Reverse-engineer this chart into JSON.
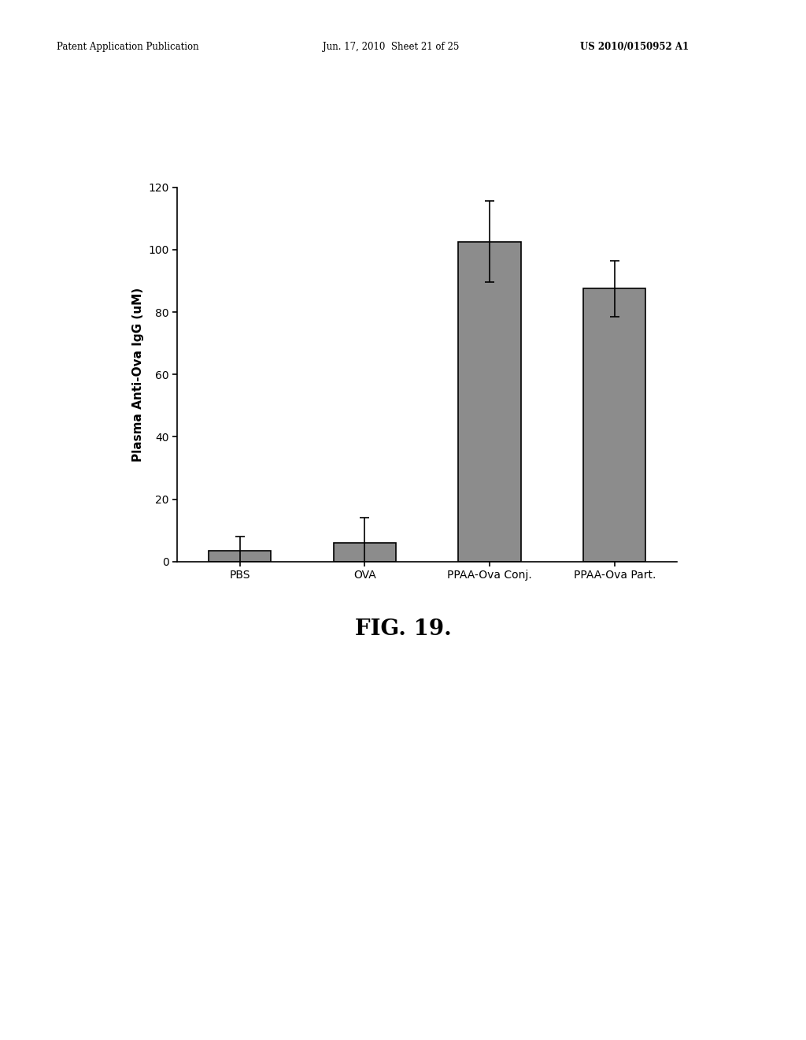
{
  "categories": [
    "PBS",
    "OVA",
    "PPAA-Ova Conj.",
    "PPAA-Ova Part."
  ],
  "values": [
    3.5,
    6.0,
    102.5,
    87.5
  ],
  "errors": [
    4.5,
    8.0,
    13.0,
    9.0
  ],
  "bar_color": "#8c8c8c",
  "bar_edgecolor": "#000000",
  "ylabel": "Plasma Anti-Ova IgG (uM)",
  "ylim": [
    0,
    120
  ],
  "yticks": [
    0,
    20,
    40,
    60,
    80,
    100,
    120
  ],
  "fig_label": "FIG. 19.",
  "header_left": "Patent Application Publication",
  "header_mid": "Jun. 17, 2010  Sheet 21 of 25",
  "header_right": "US 2010/0150952 A1",
  "background_color": "#ffffff",
  "bar_width": 0.5
}
